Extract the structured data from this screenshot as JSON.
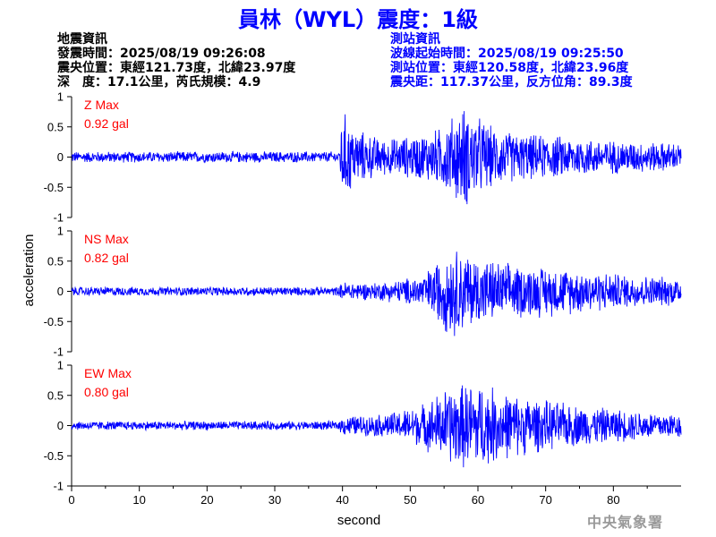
{
  "header": {
    "title": "員林（WYL）震度：1級"
  },
  "earthquake_info": {
    "heading": "地震資訊",
    "origin_time": "發震時間：2025/08/19 09:26:08",
    "epicenter": "震央位置：東經121.73度，北緯23.97度",
    "depth_magnitude": "深　度：17.1公里，芮氏規模：4.9"
  },
  "station_info": {
    "heading": "測站資訊",
    "wave_start": "波線起始時間：2025/08/19 09:25:50",
    "location": "測站位置：東經120.58度，北緯23.96度",
    "distance": "震央距：117.37公里，反方位角：89.3度"
  },
  "footer": {
    "agency": "中央氣象署"
  },
  "chart_data": {
    "type": "line",
    "xlabel": "second",
    "ylabel": "acceleration",
    "xlim": [
      0,
      90
    ],
    "xticks": [
      "0",
      "10",
      "20",
      "30",
      "40",
      "50",
      "60",
      "70",
      "80"
    ],
    "ylim": [
      -1,
      1
    ],
    "yticks": [
      "1",
      "0.5",
      "0",
      "-0.5",
      "-1"
    ],
    "line_color": "#0000ff",
    "label_color": "#ff0000",
    "series": [
      {
        "name": "Z Max",
        "max_label": "0.92 gal",
        "max_abs": 0.92,
        "envelope": [
          [
            0,
            0.1
          ],
          [
            39.5,
            0.1
          ],
          [
            40,
            0.85
          ],
          [
            42,
            0.5
          ],
          [
            46,
            0.32
          ],
          [
            50,
            0.38
          ],
          [
            54,
            0.5
          ],
          [
            58,
            0.92
          ],
          [
            62,
            0.55
          ],
          [
            66,
            0.42
          ],
          [
            72,
            0.38
          ],
          [
            80,
            0.3
          ],
          [
            90,
            0.25
          ]
        ]
      },
      {
        "name": "NS Max",
        "max_label": "0.82 gal",
        "max_abs": 0.82,
        "envelope": [
          [
            0,
            0.08
          ],
          [
            39.5,
            0.08
          ],
          [
            40,
            0.18
          ],
          [
            44,
            0.15
          ],
          [
            48,
            0.2
          ],
          [
            52,
            0.3
          ],
          [
            56,
            0.82
          ],
          [
            60,
            0.62
          ],
          [
            64,
            0.5
          ],
          [
            70,
            0.45
          ],
          [
            76,
            0.38
          ],
          [
            82,
            0.3
          ],
          [
            90,
            0.25
          ]
        ]
      },
      {
        "name": "EW Max",
        "max_label": "0.80 gal",
        "max_abs": 0.8,
        "envelope": [
          [
            0,
            0.08
          ],
          [
            39.5,
            0.08
          ],
          [
            40,
            0.18
          ],
          [
            44,
            0.18
          ],
          [
            48,
            0.25
          ],
          [
            52,
            0.4
          ],
          [
            56,
            0.72
          ],
          [
            60,
            0.8
          ],
          [
            64,
            0.6
          ],
          [
            70,
            0.45
          ],
          [
            76,
            0.35
          ],
          [
            82,
            0.28
          ],
          [
            90,
            0.22
          ]
        ]
      }
    ]
  }
}
